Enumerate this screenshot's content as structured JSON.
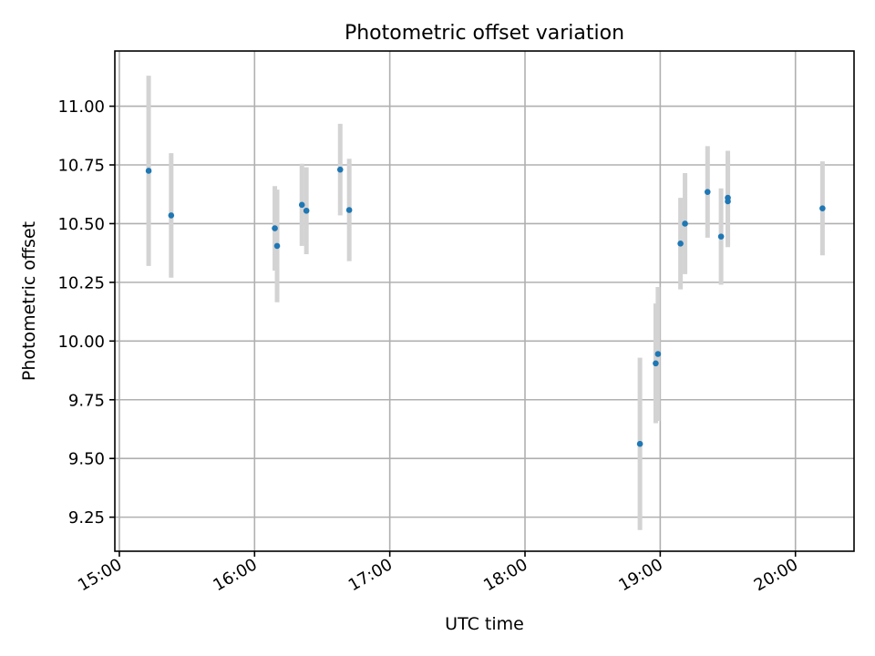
{
  "chart_data": {
    "type": "scatter",
    "title": "Photometric offset variation",
    "xlabel": "UTC time",
    "ylabel": "Photometric offset",
    "xlim": [
      "14:58",
      "20:26"
    ],
    "ylim": [
      9.105,
      11.235
    ],
    "x_ticks": [
      "15:00",
      "16:00",
      "17:00",
      "18:00",
      "19:00",
      "20:00"
    ],
    "y_ticks": [
      9.25,
      9.5,
      9.75,
      10.0,
      10.25,
      10.5,
      10.75,
      11.0
    ],
    "y_tick_labels": [
      "9.25",
      "9.50",
      "9.75",
      "10.00",
      "10.25",
      "10.50",
      "10.75",
      "11.00"
    ],
    "grid": true,
    "colors": {
      "point": "#1f77b4",
      "error_bar": "#d3d3d3",
      "grid": "#b0b0b0"
    },
    "series": [
      {
        "points": [
          {
            "x": "15:13",
            "y": 10.725,
            "err": 0.405
          },
          {
            "x": "15:23",
            "y": 10.535,
            "err": 0.265
          },
          {
            "x": "16:09",
            "y": 10.48,
            "err": 0.18
          },
          {
            "x": "16:10",
            "y": 10.405,
            "err": 0.24
          },
          {
            "x": "16:21",
            "y": 10.58,
            "err": 0.175
          },
          {
            "x": "16:23",
            "y": 10.555,
            "err": 0.185
          },
          {
            "x": "16:38",
            "y": 10.73,
            "err": 0.195
          },
          {
            "x": "16:42",
            "y": 10.558,
            "err": 0.218
          },
          {
            "x": "18:51",
            "y": 9.562,
            "err": 0.367
          },
          {
            "x": "18:58",
            "y": 9.905,
            "err": 0.255
          },
          {
            "x": "18:59",
            "y": 9.945,
            "err": 0.285
          },
          {
            "x": "19:09",
            "y": 10.415,
            "err": 0.195
          },
          {
            "x": "19:11",
            "y": 10.5,
            "err": 0.215
          },
          {
            "x": "19:21",
            "y": 10.635,
            "err": 0.195
          },
          {
            "x": "19:27",
            "y": 10.445,
            "err": 0.205
          },
          {
            "x": "19:30",
            "y": 10.61,
            "err": 0.2
          },
          {
            "x": "19:30",
            "y": 10.595,
            "err": 0.195
          },
          {
            "x": "20:12",
            "y": 10.565,
            "err": 0.2
          }
        ]
      }
    ]
  }
}
